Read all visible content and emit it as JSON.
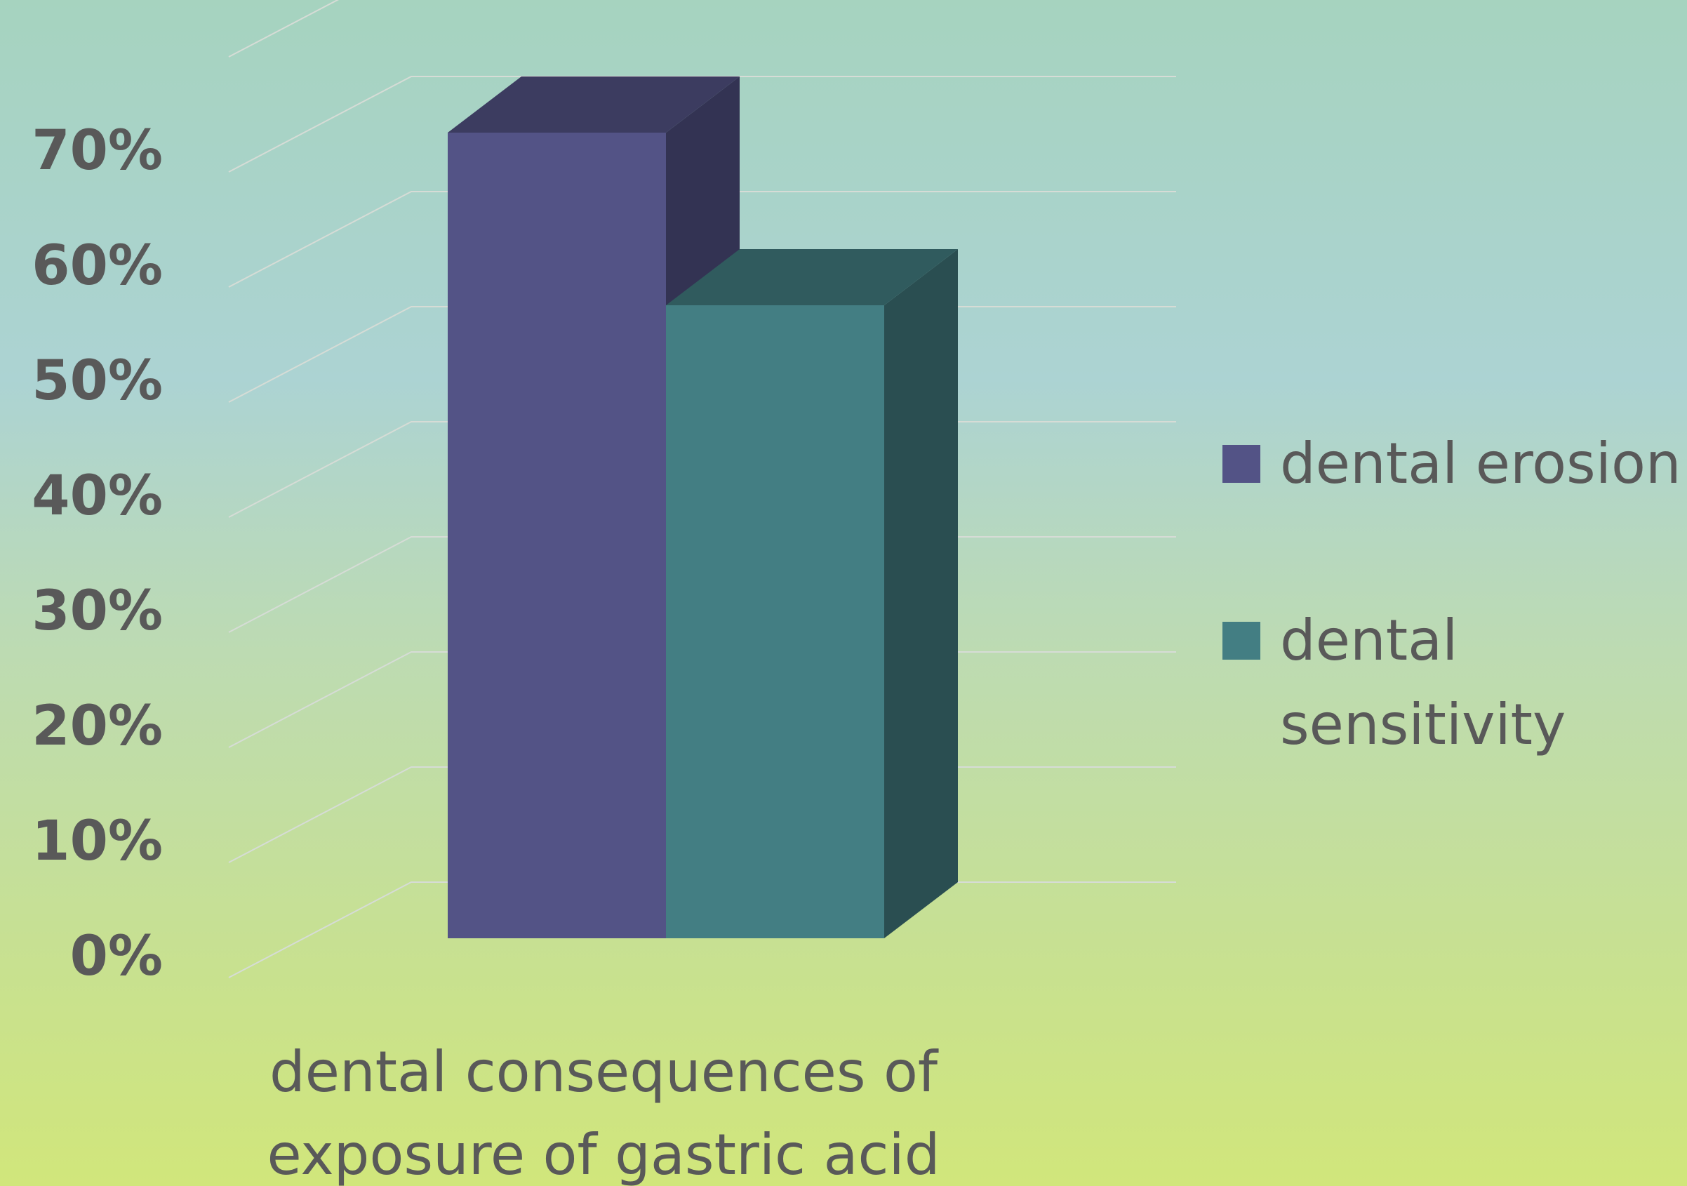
{
  "chart_data": {
    "type": "bar",
    "three_d": true,
    "categories": [
      "dental consequences of exposure of gastric acid"
    ],
    "category_label_lines": [
      "dental consequences of",
      "exposure of gastric acid"
    ],
    "series": [
      {
        "name": "dental erosion",
        "values": [
          0.7
        ],
        "color": "#535386"
      },
      {
        "name": "dental sensitivity",
        "values": [
          0.55
        ],
        "color": "#437e83"
      }
    ],
    "legend_lines": [
      [
        "dental erosion"
      ],
      [
        "dental",
        "sensitivity"
      ]
    ],
    "y_ticks": [
      "0%",
      "10%",
      "20%",
      "30%",
      "40%",
      "50%",
      "60%",
      "70%"
    ],
    "ylim": [
      0,
      0.8
    ],
    "y_format": "percent",
    "grid": true,
    "legend_position": "right",
    "title": "",
    "xlabel": "",
    "ylabel": ""
  }
}
